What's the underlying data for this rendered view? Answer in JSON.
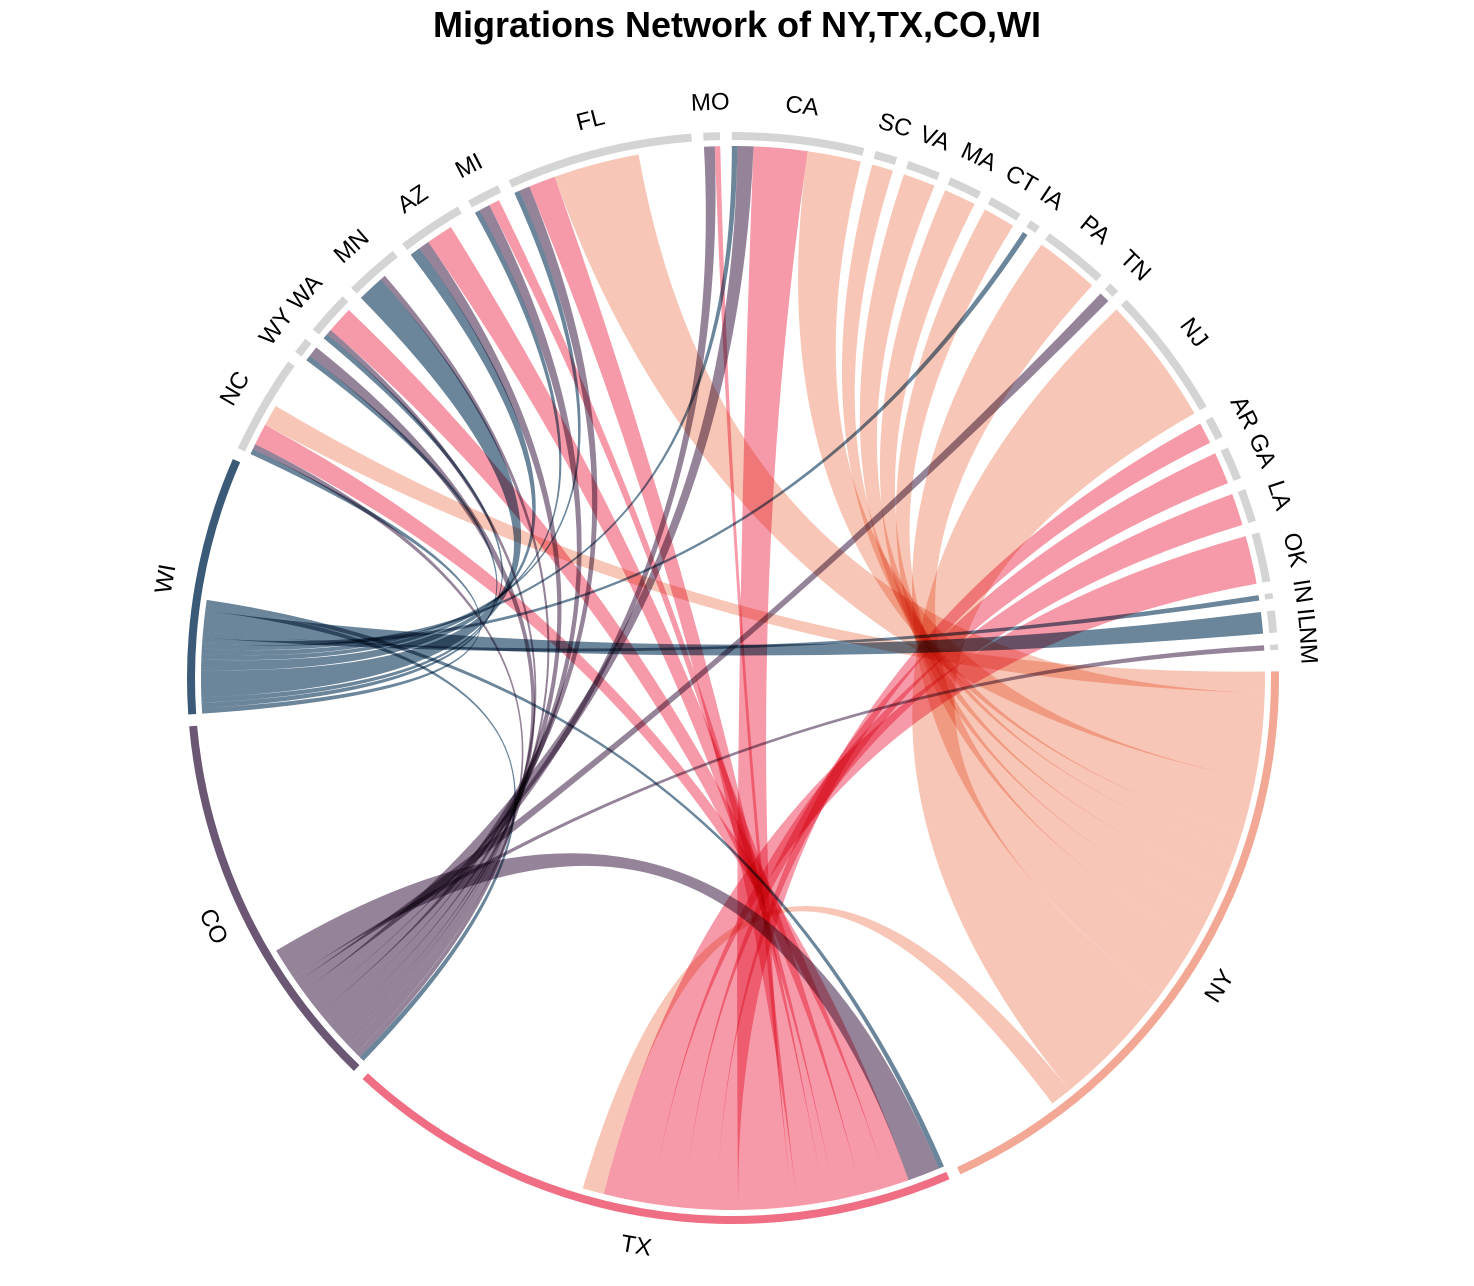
{
  "chart_data": {
    "type": "chord",
    "title": "Migrations Network of NY,TX,CO,WI",
    "colors": {
      "NY": "#f2a895",
      "TX": "#f06e84",
      "CO": "#6b5674",
      "WI": "#3a5a78",
      "other": "#d4d4d4"
    },
    "ribbon_colors": {
      "NY": "#f7b9a6",
      "TX": "#f48295",
      "CO": "#7e6882",
      "WI": "#4a6a85"
    },
    "sectors": [
      {
        "name": "NY",
        "value": 113,
        "main": true
      },
      {
        "name": "TX",
        "value": 113,
        "main": true
      },
      {
        "name": "CO",
        "value": 70,
        "main": true
      },
      {
        "name": "WI",
        "value": 47,
        "main": true
      },
      {
        "name": "NC",
        "value": 18,
        "main": false
      },
      {
        "name": "WY",
        "value": 3,
        "main": false
      },
      {
        "name": "WA",
        "value": 8,
        "main": false
      },
      {
        "name": "MN",
        "value": 10,
        "main": false
      },
      {
        "name": "AZ",
        "value": 12,
        "main": false
      },
      {
        "name": "MI",
        "value": 6,
        "main": false
      },
      {
        "name": "FL",
        "value": 34,
        "main": false
      },
      {
        "name": "MO",
        "value": 3,
        "main": false
      },
      {
        "name": "CA",
        "value": 24,
        "main": false
      },
      {
        "name": "SC",
        "value": 4,
        "main": false
      },
      {
        "name": "VA",
        "value": 6,
        "main": false
      },
      {
        "name": "MA",
        "value": 6,
        "main": false
      },
      {
        "name": "CT",
        "value": 6,
        "main": false
      },
      {
        "name": "IA",
        "value": 2,
        "main": false
      },
      {
        "name": "PA",
        "value": 12,
        "main": false
      },
      {
        "name": "TN",
        "value": 2,
        "main": false
      },
      {
        "name": "NJ",
        "value": 24,
        "main": false
      },
      {
        "name": "AR",
        "value": 4,
        "main": false
      },
      {
        "name": "GA",
        "value": 6,
        "main": false
      },
      {
        "name": "LA",
        "value": 6,
        "main": false
      },
      {
        "name": "OK",
        "value": 9,
        "main": false
      },
      {
        "name": "IN",
        "value": 1,
        "main": false
      },
      {
        "name": "IL",
        "value": 4,
        "main": false
      },
      {
        "name": "NM",
        "value": 1,
        "main": false
      }
    ],
    "links": [
      {
        "source": "WI",
        "target": "NC",
        "value": 1
      },
      {
        "source": "WI",
        "target": "WY",
        "value": 1
      },
      {
        "source": "WI",
        "target": "WA",
        "value": 1
      },
      {
        "source": "WI",
        "target": "MN",
        "value": 5
      },
      {
        "source": "WI",
        "target": "AZ",
        "value": 2
      },
      {
        "source": "WI",
        "target": "MI",
        "value": 1
      },
      {
        "source": "WI",
        "target": "FL",
        "value": 1
      },
      {
        "source": "WI",
        "target": "CA",
        "value": 1
      },
      {
        "source": "WI",
        "target": "IA",
        "value": 1
      },
      {
        "source": "WI",
        "target": "IN",
        "value": 1
      },
      {
        "source": "WI",
        "target": "IL",
        "value": 4
      },
      {
        "source": "WI",
        "target": "CO",
        "value": 1
      },
      {
        "source": "WI",
        "target": "TX",
        "value": 1
      },
      {
        "source": "CO",
        "target": "NC",
        "value": 1
      },
      {
        "source": "CO",
        "target": "WY",
        "value": 2
      },
      {
        "source": "CO",
        "target": "WA",
        "value": 1
      },
      {
        "source": "CO",
        "target": "MN",
        "value": 1
      },
      {
        "source": "CO",
        "target": "AZ",
        "value": 2
      },
      {
        "source": "CO",
        "target": "MI",
        "value": 2
      },
      {
        "source": "CO",
        "target": "FL",
        "value": 2
      },
      {
        "source": "CO",
        "target": "MO",
        "value": 2
      },
      {
        "source": "CO",
        "target": "CA",
        "value": 3
      },
      {
        "source": "CO",
        "target": "TN",
        "value": 2
      },
      {
        "source": "CO",
        "target": "NM",
        "value": 1
      },
      {
        "source": "CO",
        "target": "TX",
        "value": 6
      },
      {
        "source": "TX",
        "target": "NC",
        "value": 4
      },
      {
        "source": "TX",
        "target": "WA",
        "value": 5
      },
      {
        "source": "TX",
        "target": "AZ",
        "value": 5
      },
      {
        "source": "TX",
        "target": "MI",
        "value": 2
      },
      {
        "source": "TX",
        "target": "FL",
        "value": 5
      },
      {
        "source": "TX",
        "target": "MO",
        "value": 1
      },
      {
        "source": "TX",
        "target": "CA",
        "value": 10
      },
      {
        "source": "TX",
        "target": "AR",
        "value": 4
      },
      {
        "source": "TX",
        "target": "GA",
        "value": 6
      },
      {
        "source": "TX",
        "target": "LA",
        "value": 6
      },
      {
        "source": "TX",
        "target": "OK",
        "value": 9
      },
      {
        "source": "NY",
        "target": "NC",
        "value": 4
      },
      {
        "source": "NY",
        "target": "FL",
        "value": 16
      },
      {
        "source": "NY",
        "target": "CA",
        "value": 10
      },
      {
        "source": "NY",
        "target": "SC",
        "value": 4
      },
      {
        "source": "NY",
        "target": "VA",
        "value": 6
      },
      {
        "source": "NY",
        "target": "MA",
        "value": 6
      },
      {
        "source": "NY",
        "target": "CT",
        "value": 6
      },
      {
        "source": "NY",
        "target": "PA",
        "value": 12
      },
      {
        "source": "NY",
        "target": "NJ",
        "value": 24
      },
      {
        "source": "NY",
        "target": "TX",
        "value": 4
      }
    ]
  }
}
